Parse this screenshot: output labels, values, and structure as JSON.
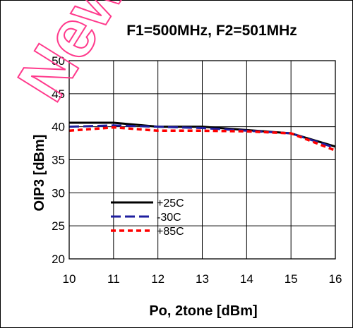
{
  "chart_data": {
    "type": "line",
    "title": "F1=500MHz, F2=501MHz",
    "xlabel": "Po, 2tone [dBm]",
    "ylabel": "OIP3 [dBm]",
    "xlim": [
      10,
      16
    ],
    "ylim": [
      20,
      50
    ],
    "xticks": [
      10,
      11,
      12,
      13,
      14,
      15,
      16
    ],
    "yticks": [
      20,
      25,
      30,
      35,
      40,
      45,
      50
    ],
    "grid": true,
    "legend_position": "lower-left",
    "series": [
      {
        "name": "+25C",
        "color": "#000000",
        "dash": "solid",
        "x": [
          10,
          11,
          12,
          13,
          14,
          15,
          16
        ],
        "y": [
          40.6,
          40.6,
          40.0,
          40.0,
          39.5,
          39.0,
          37.0
        ]
      },
      {
        "name": "-30C",
        "color": "#1f1f9f",
        "dash": "dashed",
        "x": [
          10,
          11,
          12,
          13,
          14,
          15,
          16
        ],
        "y": [
          40.0,
          40.2,
          40.0,
          39.8,
          39.4,
          39.0,
          36.8
        ]
      },
      {
        "name": "+85C",
        "color": "#ff0000",
        "dash": "dotted",
        "x": [
          10,
          11,
          12,
          13,
          14,
          15,
          16
        ],
        "y": [
          39.4,
          39.9,
          39.4,
          39.4,
          39.3,
          39.0,
          36.4
        ]
      }
    ]
  },
  "watermark": {
    "text": "New",
    "color": "#ff3a8c"
  }
}
